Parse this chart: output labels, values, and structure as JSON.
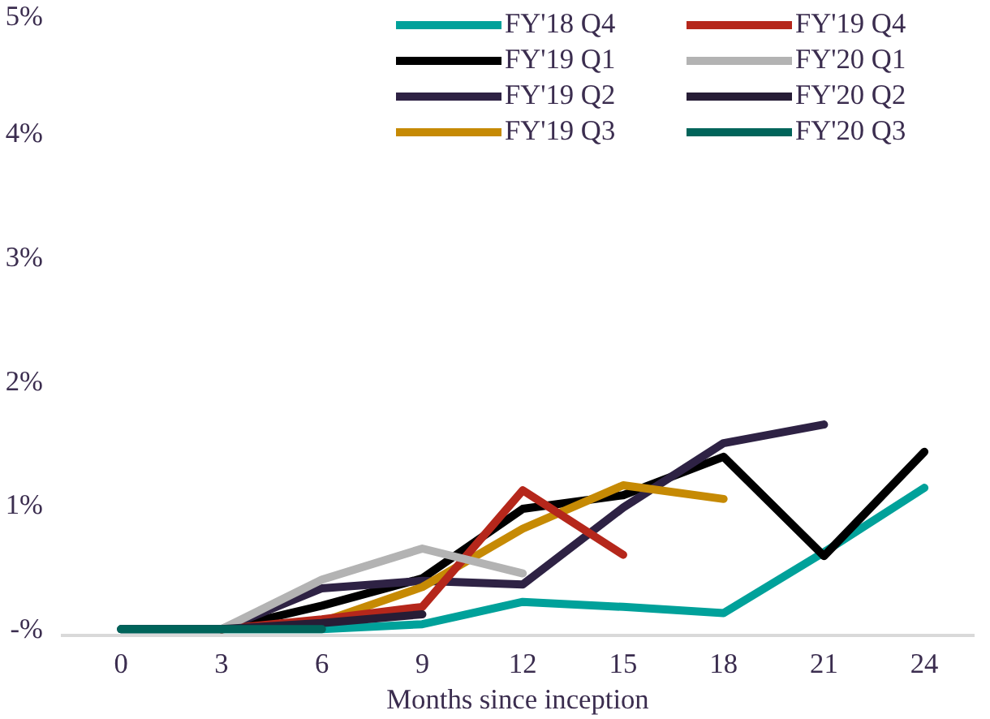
{
  "chart_data": {
    "type": "line",
    "xlabel": "Months since inception",
    "x": [
      0,
      3,
      6,
      9,
      12,
      15,
      18,
      21,
      24
    ],
    "xlim": [
      -1.8,
      25.5
    ],
    "xticks": [
      0,
      3,
      6,
      9,
      12,
      15,
      18,
      21,
      24
    ],
    "ylim": [
      -0.05,
      5
    ],
    "yticks": [
      {
        "value": 0,
        "label": "-%"
      },
      {
        "value": 1,
        "label": "1%"
      },
      {
        "value": 2,
        "label": "2%"
      },
      {
        "value": 3,
        "label": "3%"
      },
      {
        "value": 4,
        "label": "4%"
      },
      {
        "value": 5,
        "label": "5%"
      }
    ],
    "grid": false,
    "legend": "top right",
    "line_style": "solid",
    "marker": "none",
    "series": [
      {
        "name": "FY'18 Q4",
        "color": "#00a19a",
        "values": [
          0,
          0,
          0,
          0.04,
          0.22,
          0.18,
          0.13,
          0.62,
          1.14
        ]
      },
      {
        "name": "FY'19 Q1",
        "color": "#000000",
        "values": [
          null,
          0,
          0.19,
          0.41,
          0.97,
          1.08,
          1.39,
          0.59,
          1.43
        ]
      },
      {
        "name": "FY'19 Q2",
        "color": "#2e2244",
        "values": [
          null,
          0,
          0.33,
          0.39,
          0.36,
          0.98,
          1.5,
          1.65,
          null
        ]
      },
      {
        "name": "FY'19 Q3",
        "color": "#c68a04",
        "values": [
          null,
          0,
          0.06,
          0.34,
          0.81,
          1.16,
          1.05,
          null,
          null
        ]
      },
      {
        "name": "FY'19 Q4",
        "color": "#b5271b",
        "values": [
          null,
          0,
          0.08,
          0.18,
          1.12,
          0.6,
          null,
          null,
          null
        ]
      },
      {
        "name": "FY'20 Q1",
        "color": "#b3b3b3",
        "values": [
          null,
          0,
          0.4,
          0.65,
          0.45,
          null,
          null,
          null,
          null
        ]
      },
      {
        "name": "FY'20 Q2",
        "color": "#271d36",
        "values": [
          0,
          0,
          0.05,
          0.12,
          null,
          null,
          null,
          null,
          null
        ]
      },
      {
        "name": "FY'20 Q3",
        "color": "#00645a",
        "values": [
          0,
          0,
          0,
          null,
          null,
          null,
          null,
          null,
          null
        ]
      }
    ]
  }
}
